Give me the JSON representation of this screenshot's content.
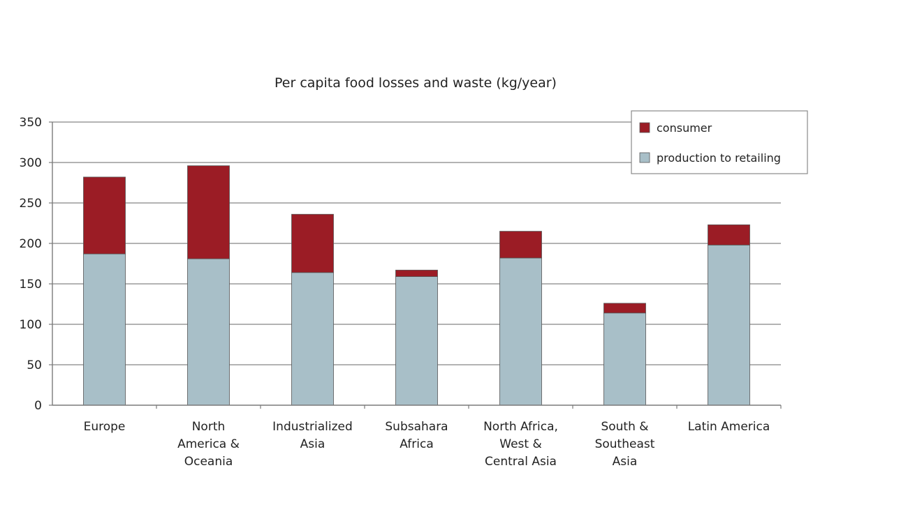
{
  "chart_data": {
    "type": "bar",
    "stacked": true,
    "title": "Per capita food losses and waste (kg/year)",
    "xlabel": "",
    "ylabel": "",
    "categories": [
      [
        "Europe"
      ],
      [
        "North",
        "America &",
        "Oceania"
      ],
      [
        "Industrialized",
        "Asia"
      ],
      [
        "Subsahara",
        "Africa"
      ],
      [
        "North Africa,",
        "West &",
        "Central Asia"
      ],
      [
        "South &",
        "Southeast",
        "Asia"
      ],
      [
        "Latin America"
      ]
    ],
    "series": [
      {
        "name": "production to retailing",
        "color": "#a8bfc8",
        "values": [
          187,
          181,
          164,
          159,
          182,
          114,
          198
        ]
      },
      {
        "name": "consumer",
        "color": "#9b1c25",
        "values": [
          95,
          115,
          72,
          8,
          33,
          12,
          25
        ]
      }
    ],
    "legend_order": [
      1,
      0
    ],
    "legend_position": "top-right",
    "yticks": [
      "0",
      "50",
      "100",
      "150",
      "200",
      "250",
      "300",
      "350"
    ],
    "ylim": [
      0,
      350
    ],
    "grid": true
  }
}
